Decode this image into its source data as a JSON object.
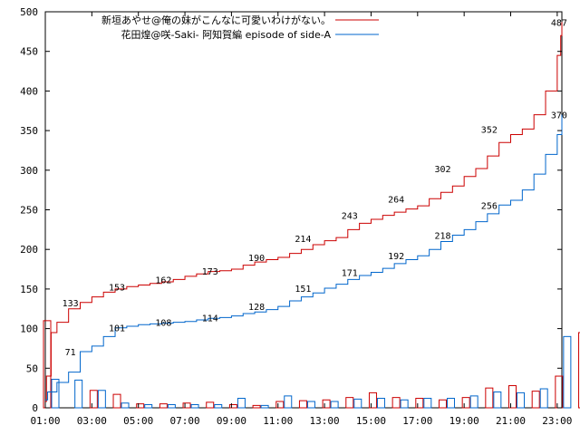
{
  "chart_data": {
    "type": "line",
    "title": "",
    "xlabel": "",
    "ylabel": "",
    "ylim": [
      0,
      500
    ],
    "yticks": [
      0,
      50,
      100,
      150,
      200,
      250,
      300,
      350,
      400,
      450,
      500
    ],
    "xlim": [
      1,
      23.2
    ],
    "xtick_labels": [
      "01:00",
      "03:00",
      "05:00",
      "07:00",
      "09:00",
      "11:00",
      "13:00",
      "15:00",
      "17:00",
      "19:00",
      "21:00",
      "23:00"
    ],
    "xtick_hours": [
      1,
      3,
      5,
      7,
      9,
      11,
      13,
      15,
      17,
      19,
      21,
      23
    ],
    "grid": false,
    "legend_position": "top",
    "series": [
      {
        "name": "新垣あやせ@俺の妹がこんなに可愛いわけがない。",
        "color": "#cc0000",
        "cumulative": [
          [
            1,
            8
          ],
          [
            1.05,
            40
          ],
          [
            1.25,
            95
          ],
          [
            1.5,
            108
          ],
          [
            2,
            125
          ],
          [
            2.5,
            133
          ],
          [
            3,
            140
          ],
          [
            3.5,
            146
          ],
          [
            4,
            150
          ],
          [
            4.5,
            153
          ],
          [
            5,
            155
          ],
          [
            5.5,
            157
          ],
          [
            6,
            159
          ],
          [
            6.5,
            162
          ],
          [
            7,
            166
          ],
          [
            7.5,
            169
          ],
          [
            8,
            172
          ],
          [
            8.5,
            173
          ],
          [
            9,
            175
          ],
          [
            9.5,
            180
          ],
          [
            10,
            184
          ],
          [
            10.5,
            187
          ],
          [
            11,
            190
          ],
          [
            11.5,
            195
          ],
          [
            12,
            200
          ],
          [
            12.5,
            206
          ],
          [
            13,
            211
          ],
          [
            13.5,
            215
          ],
          [
            14,
            225
          ],
          [
            14.5,
            233
          ],
          [
            15,
            238
          ],
          [
            15.5,
            243
          ],
          [
            16,
            247
          ],
          [
            16.5,
            251
          ],
          [
            17,
            255
          ],
          [
            17.5,
            264
          ],
          [
            18,
            272
          ],
          [
            18.5,
            280
          ],
          [
            19,
            292
          ],
          [
            19.5,
            302
          ],
          [
            20,
            318
          ],
          [
            20.5,
            335
          ],
          [
            21,
            345
          ],
          [
            21.5,
            352
          ],
          [
            22,
            370
          ],
          [
            22.5,
            400
          ],
          [
            23,
            445
          ],
          [
            23.15,
            470
          ],
          [
            23.2,
            487
          ]
        ],
        "value_labels": [
          [
            2,
            133
          ],
          [
            4,
            153
          ],
          [
            6,
            162
          ],
          [
            8,
            173
          ],
          [
            10,
            190
          ],
          [
            12,
            214
          ],
          [
            14,
            243
          ],
          [
            16,
            264
          ],
          [
            18,
            302
          ],
          [
            20,
            352
          ],
          [
            23,
            487
          ]
        ],
        "hourly_bars": [
          110,
          0,
          22,
          17,
          5,
          5,
          6,
          7,
          4,
          3,
          8,
          9,
          10,
          13,
          19,
          13,
          12,
          10,
          13,
          25,
          28,
          21,
          40,
          95
        ]
      },
      {
        "name": "花田煌@咲-Saki- 阿知賀編 episode of side-A",
        "color": "#0066cc",
        "cumulative": [
          [
            1,
            10
          ],
          [
            1.1,
            20
          ],
          [
            1.5,
            32
          ],
          [
            2,
            45
          ],
          [
            2.5,
            71
          ],
          [
            3,
            78
          ],
          [
            3.5,
            90
          ],
          [
            4,
            101
          ],
          [
            4.5,
            103
          ],
          [
            5,
            105
          ],
          [
            5.5,
            106
          ],
          [
            6,
            107
          ],
          [
            6.5,
            108
          ],
          [
            7,
            109
          ],
          [
            7.5,
            111
          ],
          [
            8,
            113
          ],
          [
            8.5,
            114
          ],
          [
            9,
            116
          ],
          [
            9.5,
            119
          ],
          [
            10,
            121
          ],
          [
            10.5,
            124
          ],
          [
            11,
            128
          ],
          [
            11.5,
            135
          ],
          [
            12,
            140
          ],
          [
            12.5,
            145
          ],
          [
            13,
            151
          ],
          [
            13.5,
            156
          ],
          [
            14,
            162
          ],
          [
            14.5,
            167
          ],
          [
            15,
            171
          ],
          [
            15.5,
            176
          ],
          [
            16,
            182
          ],
          [
            16.5,
            187
          ],
          [
            17,
            192
          ],
          [
            17.5,
            200
          ],
          [
            18,
            210
          ],
          [
            18.5,
            218
          ],
          [
            19,
            225
          ],
          [
            19.5,
            235
          ],
          [
            20,
            245
          ],
          [
            20.5,
            256
          ],
          [
            21,
            262
          ],
          [
            21.5,
            275
          ],
          [
            22,
            295
          ],
          [
            22.5,
            320
          ],
          [
            23,
            345
          ],
          [
            23.2,
            370
          ]
        ],
        "value_labels": [
          [
            2,
            71
          ],
          [
            4,
            101
          ],
          [
            6,
            108
          ],
          [
            8,
            114
          ],
          [
            10,
            128
          ],
          [
            12,
            151
          ],
          [
            14,
            171
          ],
          [
            16,
            192
          ],
          [
            18,
            218
          ],
          [
            20,
            256
          ],
          [
            23,
            370
          ]
        ],
        "hourly_bars": [
          36,
          35,
          22,
          6,
          4,
          4,
          4,
          4,
          12,
          3,
          15,
          8,
          8,
          11,
          12,
          10,
          12,
          12,
          15,
          20,
          19,
          24,
          90,
          0
        ]
      }
    ]
  },
  "colors": {
    "red": "#cc0000",
    "blue": "#0066cc",
    "axis": "#000000"
  }
}
